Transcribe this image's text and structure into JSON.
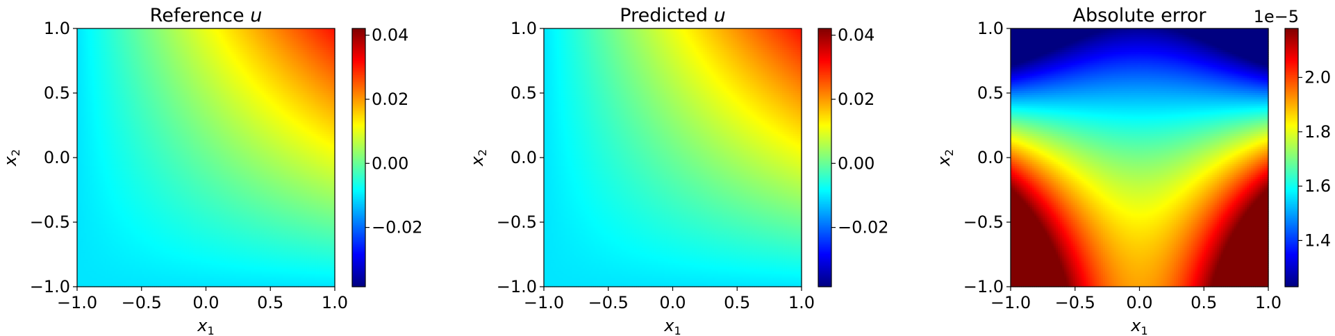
{
  "colormap": "jet",
  "chart_data": [
    {
      "type": "heatmap",
      "title": "Reference",
      "title_var": "u",
      "xlabel": "x",
      "xlabel_sub": "1",
      "ylabel": "x",
      "ylabel_sub": "2",
      "xlim": [
        -1.0,
        1.0
      ],
      "ylim": [
        -1.0,
        1.0
      ],
      "xticks": [
        "−1.0",
        "−0.5",
        "0.0",
        "0.5",
        "1.0"
      ],
      "yticks": [
        "−1.0",
        "−0.5",
        "0.0",
        "0.5",
        "1.0"
      ],
      "field": "u(x1,x2) = 0.0103*(x1+x2) + 0.0103*x1*x2",
      "colorbar": {
        "range": [
          -0.0385,
          0.0421
        ],
        "ticks": [
          -0.02,
          0.0,
          0.02,
          0.04
        ],
        "tick_labels": [
          "−0.02",
          "0.00",
          "0.02",
          "0.04"
        ],
        "offset": ""
      }
    },
    {
      "type": "heatmap",
      "title": "Predicted",
      "title_var": "u",
      "xlabel": "x",
      "xlabel_sub": "1",
      "ylabel": "x",
      "ylabel_sub": "2",
      "xlim": [
        -1.0,
        1.0
      ],
      "ylim": [
        -1.0,
        1.0
      ],
      "xticks": [
        "−1.0",
        "−0.5",
        "0.0",
        "0.5",
        "1.0"
      ],
      "yticks": [
        "−1.0",
        "−0.5",
        "0.0",
        "0.5",
        "1.0"
      ],
      "field": "u(x1,x2) = 0.0103*(x1+x2) + 0.0103*x1*x2",
      "colorbar": {
        "range": [
          -0.0385,
          0.0421
        ],
        "ticks": [
          -0.02,
          0.0,
          0.02,
          0.04
        ],
        "tick_labels": [
          "−0.02",
          "0.00",
          "0.02",
          "0.04"
        ],
        "offset": ""
      }
    },
    {
      "type": "heatmap",
      "title": "Absolute error",
      "title_var": "",
      "xlabel": "x",
      "xlabel_sub": "1",
      "ylabel": "x",
      "ylabel_sub": "2",
      "xlim": [
        -1.0,
        1.0
      ],
      "ylim": [
        -1.0,
        1.0
      ],
      "xticks": [
        "−1.0",
        "−0.5",
        "0.0",
        "0.5",
        "1.0"
      ],
      "yticks": [
        "−1.0",
        "−0.5",
        "0.0",
        "0.5",
        "1.0"
      ],
      "field": "e(x1,x2) = 1.7e-5 + 2.6e-6*x1^2 - 3.3e-6*x2 - 1.2e-6*x2^2 - 6.1e-6*x1^2*x2",
      "colorbar": {
        "range": [
          1.23,
          2.18
        ],
        "ticks": [
          1.4,
          1.6,
          1.8,
          2.0
        ],
        "tick_labels": [
          "1.4",
          "1.6",
          "1.8",
          "2.0"
        ],
        "offset": "1e−5"
      }
    }
  ]
}
